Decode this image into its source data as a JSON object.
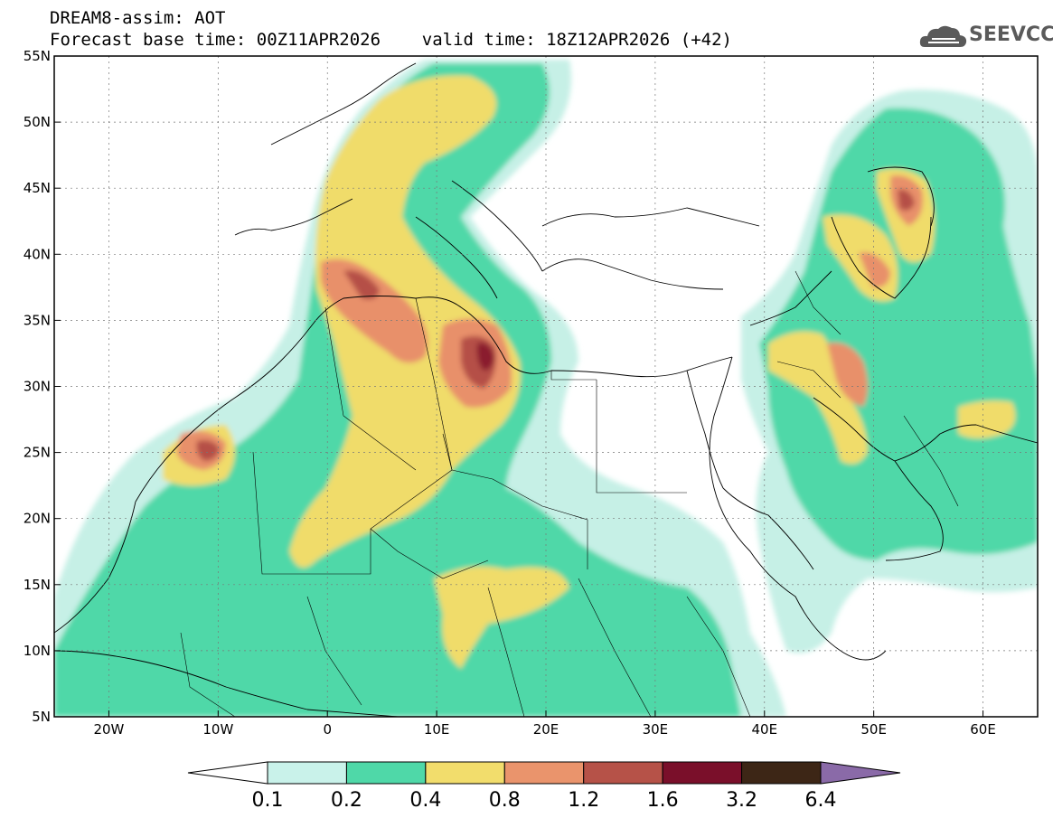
{
  "header": {
    "line1": "DREAM8-assim: AOT",
    "line2": "Forecast base time: 00Z11APR2026    valid time: 18Z12APR2026 (+42)"
  },
  "logo": {
    "text": "SEEVCCC",
    "icon": "cloud-icon",
    "color": "#5a5a5a"
  },
  "map": {
    "lon_range": [
      -25,
      65
    ],
    "lat_range": [
      5,
      55
    ],
    "grid": true,
    "lat_ticks": [
      {
        "value": 5,
        "label": "5N"
      },
      {
        "value": 10,
        "label": "10N"
      },
      {
        "value": 15,
        "label": "15N"
      },
      {
        "value": 20,
        "label": "20N"
      },
      {
        "value": 25,
        "label": "25N"
      },
      {
        "value": 30,
        "label": "30N"
      },
      {
        "value": 35,
        "label": "35N"
      },
      {
        "value": 40,
        "label": "40N"
      },
      {
        "value": 45,
        "label": "45N"
      },
      {
        "value": 50,
        "label": "50N"
      },
      {
        "value": 55,
        "label": "55N"
      }
    ],
    "lon_ticks": [
      {
        "value": -20,
        "label": "20W"
      },
      {
        "value": -10,
        "label": "10W"
      },
      {
        "value": 0,
        "label": "0"
      },
      {
        "value": 10,
        "label": "10E"
      },
      {
        "value": 20,
        "label": "20E"
      },
      {
        "value": 30,
        "label": "30E"
      },
      {
        "value": 40,
        "label": "40E"
      },
      {
        "value": 50,
        "label": "50E"
      },
      {
        "value": 60,
        "label": "60E"
      }
    ],
    "levels": [
      {
        "range": "0.1-0.2",
        "color": "#c6f0e6"
      },
      {
        "range": "0.2-0.4",
        "color": "#4fd8a8"
      },
      {
        "range": "0.4-0.8",
        "color": "#f0dc6a"
      },
      {
        "range": "0.8-1.2",
        "color": "#e8906a"
      },
      {
        "range": "1.2-1.6",
        "color": "#b55046"
      },
      {
        "range": "1.6-3.2",
        "color": "#8a1a2e"
      }
    ]
  },
  "colorbar": {
    "labels": [
      "0.1",
      "0.2",
      "0.4",
      "0.8",
      "1.2",
      "1.6",
      "3.2",
      "6.4"
    ],
    "colors": [
      "#c9f2ea",
      "#4fd8a8",
      "#f2dd6c",
      "#ea946c",
      "#b65248",
      "#7a0f2a",
      "#3d2616"
    ],
    "under_color": "#ffffff",
    "over_color": "#8a6aa8"
  }
}
